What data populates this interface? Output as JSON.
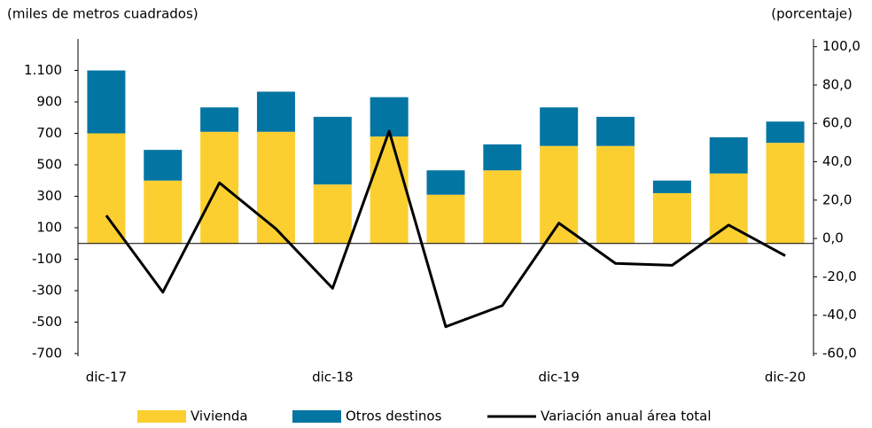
{
  "chart_data": {
    "type": "bar",
    "stacked": true,
    "y_label": "(miles de metros cuadrados)",
    "y2_label": "(porcentaje)",
    "categories": [
      "dic-17",
      null,
      null,
      null,
      "dic-18",
      null,
      null,
      null,
      "dic-19",
      null,
      null,
      null,
      "dic-20"
    ],
    "series": [
      {
        "name": "Vivienda",
        "type": "bar",
        "color": "#fccf31",
        "values": [
          700,
          400,
          710,
          710,
          375,
          680,
          310,
          465,
          620,
          620,
          320,
          445,
          640
        ]
      },
      {
        "name": "Otros destinos",
        "type": "bar",
        "color": "#0375a3",
        "values": [
          400,
          195,
          155,
          255,
          430,
          250,
          155,
          165,
          245,
          185,
          80,
          230,
          135
        ]
      },
      {
        "name": "Variación anual área total",
        "type": "line",
        "axis": "y2",
        "color": "#000000",
        "values": [
          12,
          -28,
          29,
          5,
          -26,
          56,
          -46,
          -35,
          8,
          -13,
          -14,
          7,
          -9
        ]
      }
    ],
    "ylim": [
      -700,
      1300
    ],
    "yticks": [
      -700,
      -500,
      -300,
      -100,
      100,
      300,
      500,
      700,
      900,
      {
        "value": 1100,
        "label": "1.100"
      }
    ],
    "y2lim": [
      -60,
      104
    ],
    "y2ticks": [
      {
        "value": -60,
        "label": "-60,0"
      },
      {
        "value": -40,
        "label": "-40,0"
      },
      {
        "value": -20,
        "label": "-20,0"
      },
      {
        "value": 0,
        "label": "0,0"
      },
      {
        "value": 20,
        "label": "20,0"
      },
      {
        "value": 40,
        "label": "40,0"
      },
      {
        "value": 60,
        "label": "60,0"
      },
      {
        "value": 80,
        "label": "80,0"
      },
      {
        "value": 100,
        "label": "100,0"
      }
    ]
  }
}
